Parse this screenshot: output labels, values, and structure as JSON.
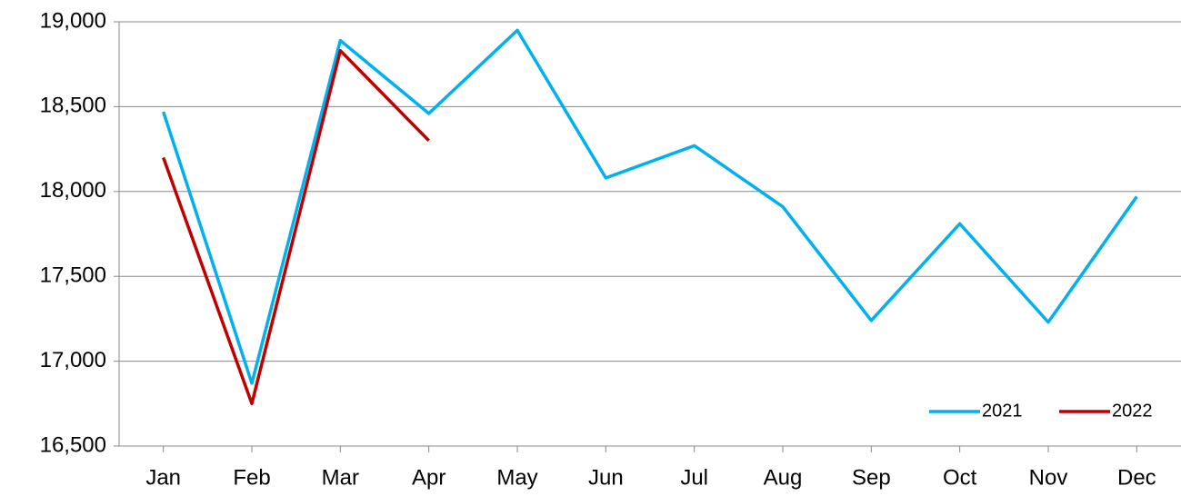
{
  "chart_data": {
    "type": "line",
    "categories": [
      "Jan",
      "Feb",
      "Mar",
      "Apr",
      "May",
      "Jun",
      "Jul",
      "Aug",
      "Sep",
      "Oct",
      "Nov",
      "Dec"
    ],
    "series": [
      {
        "name": "2021",
        "color": "#00b0f0",
        "values": [
          18470,
          16870,
          18890,
          18460,
          18950,
          18080,
          18270,
          17910,
          17240,
          17810,
          17230,
          17970
        ]
      },
      {
        "name": "2022",
        "color": "#c00000",
        "values": [
          18200,
          16750,
          18830,
          18300,
          null,
          null,
          null,
          null,
          null,
          null,
          null,
          null
        ]
      }
    ],
    "ylim": [
      16500,
      19000
    ],
    "yticks": [
      {
        "value": 16500,
        "label": "16,500"
      },
      {
        "value": 17000,
        "label": "17,000"
      },
      {
        "value": 17500,
        "label": "17,500"
      },
      {
        "value": 18000,
        "label": "18,000"
      },
      {
        "value": 18500,
        "label": "18,500"
      },
      {
        "value": 19000,
        "label": "19,000"
      }
    ],
    "grid": true,
    "legend": "lower right"
  }
}
